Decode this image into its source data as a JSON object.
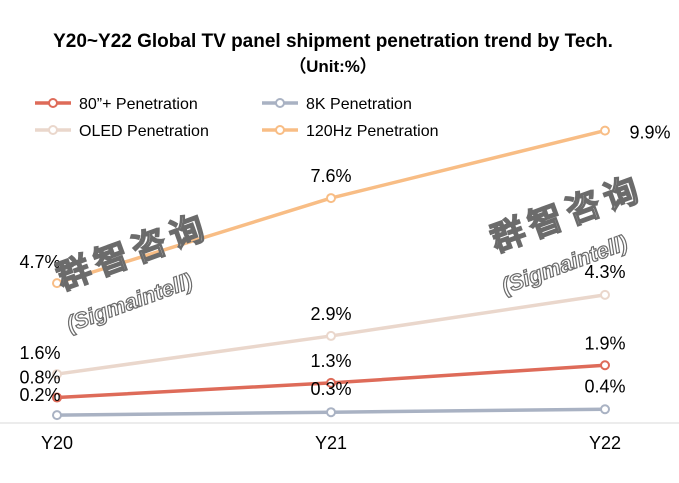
{
  "chart_data": {
    "type": "line",
    "title": "Y20~Y22 Global TV panel shipment penetration trend by Tech.",
    "subtitle": "（Unit:%）",
    "xlabel": "",
    "ylabel": "",
    "categories": [
      "Y20",
      "Y21",
      "Y22"
    ],
    "ylim": [
      0,
      10.5
    ],
    "grid": false,
    "legend_position": "top-left",
    "series": [
      {
        "name": "80”+ Penetration",
        "values": [
          0.8,
          1.3,
          1.9
        ],
        "labels": [
          "0.8%",
          "1.3%",
          "1.9%"
        ],
        "color": "#de6b59"
      },
      {
        "name": "8K Penetration",
        "values": [
          0.2,
          0.3,
          0.4
        ],
        "labels": [
          "0.2%",
          "0.3%",
          "0.4%"
        ],
        "color": "#a9b2c3"
      },
      {
        "name": "OLED Penetration",
        "values": [
          1.6,
          2.9,
          4.3
        ],
        "labels": [
          "1.6%",
          "2.9%",
          "4.3%"
        ],
        "color": "#ead7cc"
      },
      {
        "name": "120Hz Penetration",
        "values": [
          4.7,
          7.6,
          9.9
        ],
        "labels": [
          "4.7%",
          "7.6%",
          "9.9%"
        ],
        "color": "#f8bd85"
      }
    ]
  },
  "watermark": {
    "chinese": "群智咨询",
    "english": "(Sigmaintell)",
    "color": "#6b6b6b"
  }
}
